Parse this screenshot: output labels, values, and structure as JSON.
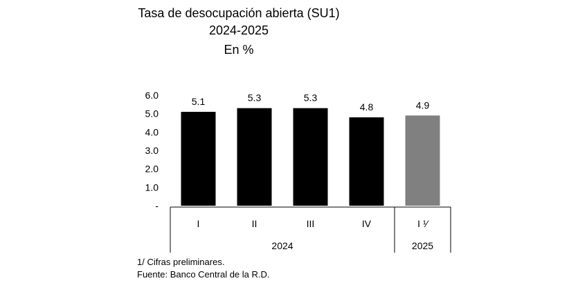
{
  "chart_data": {
    "type": "bar",
    "title": "Tasa de desocupación abierta (SU1)",
    "subtitle": "2024-2025",
    "unit": "En %",
    "categories": [
      "I",
      "II",
      "III",
      "IV",
      "I ¹⁄"
    ],
    "groups": [
      {
        "label": "2024",
        "count": 4
      },
      {
        "label": "2025",
        "count": 1
      }
    ],
    "values": [
      5.1,
      5.3,
      5.3,
      4.8,
      4.9
    ],
    "value_labels": [
      "5.1",
      "5.3",
      "5.3",
      "4.8",
      "4.9"
    ],
    "colors": [
      "#000000",
      "#000000",
      "#000000",
      "#000000",
      "#808080"
    ],
    "yticks": [
      "-",
      "1.0",
      "2.0",
      "3.0",
      "4.0",
      "5.0",
      "6.0"
    ],
    "ylim": [
      0,
      6.0
    ],
    "grid": false
  },
  "notes": {
    "footnote": "1/ Cifras preliminares.",
    "source": "Fuente: Banco Central de la R.D."
  }
}
